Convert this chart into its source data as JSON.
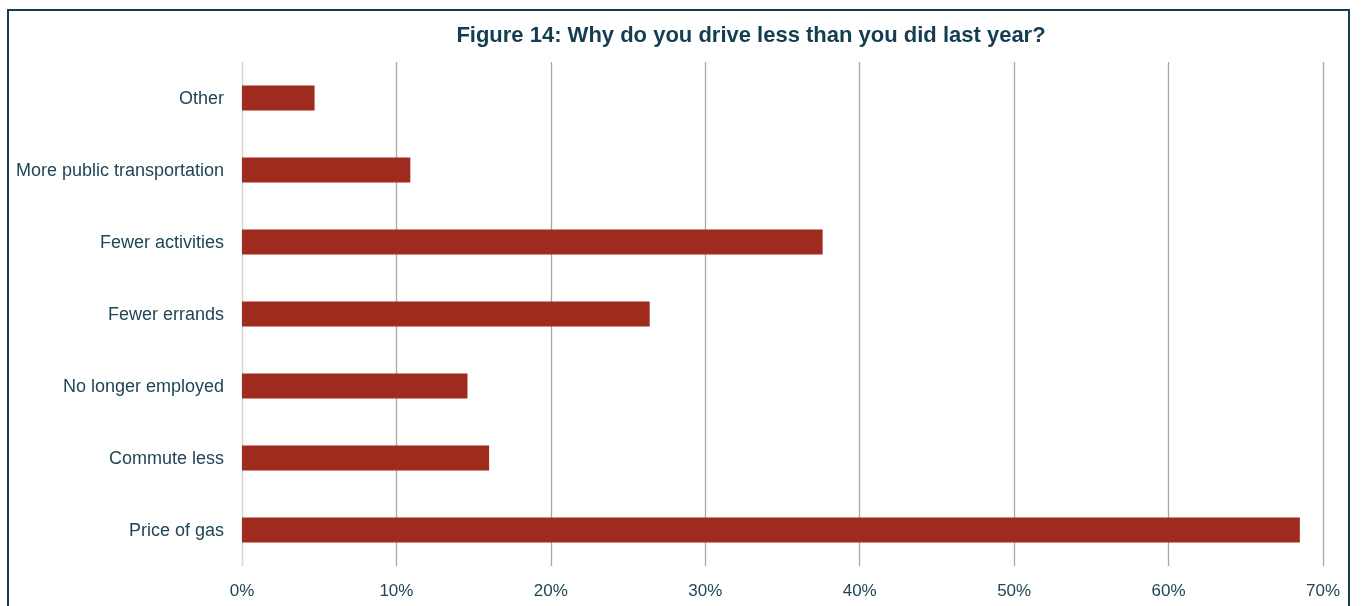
{
  "chart_data": {
    "type": "bar",
    "orientation": "horizontal",
    "title": "Figure 14: Why do you drive less than you did last year?",
    "categories": [
      "Other",
      "More public transportation",
      "Fewer activities",
      "Fewer errands",
      "No longer employed",
      "Commute less",
      "Price of gas"
    ],
    "values": [
      4.7,
      10.9,
      37.6,
      26.4,
      14.6,
      16.0,
      68.5
    ],
    "color": "#9e2b1e",
    "xlim": [
      0,
      70
    ],
    "xticks": [
      {
        "value": 0,
        "label": "0%"
      },
      {
        "value": 10,
        "label": "10%"
      },
      {
        "value": 20,
        "label": "20%"
      },
      {
        "value": 30,
        "label": "30%"
      },
      {
        "value": 40,
        "label": "40%"
      },
      {
        "value": 50,
        "label": "50%"
      },
      {
        "value": 60,
        "label": "60%"
      },
      {
        "value": 70,
        "label": "70%"
      }
    ],
    "grid": "x"
  }
}
